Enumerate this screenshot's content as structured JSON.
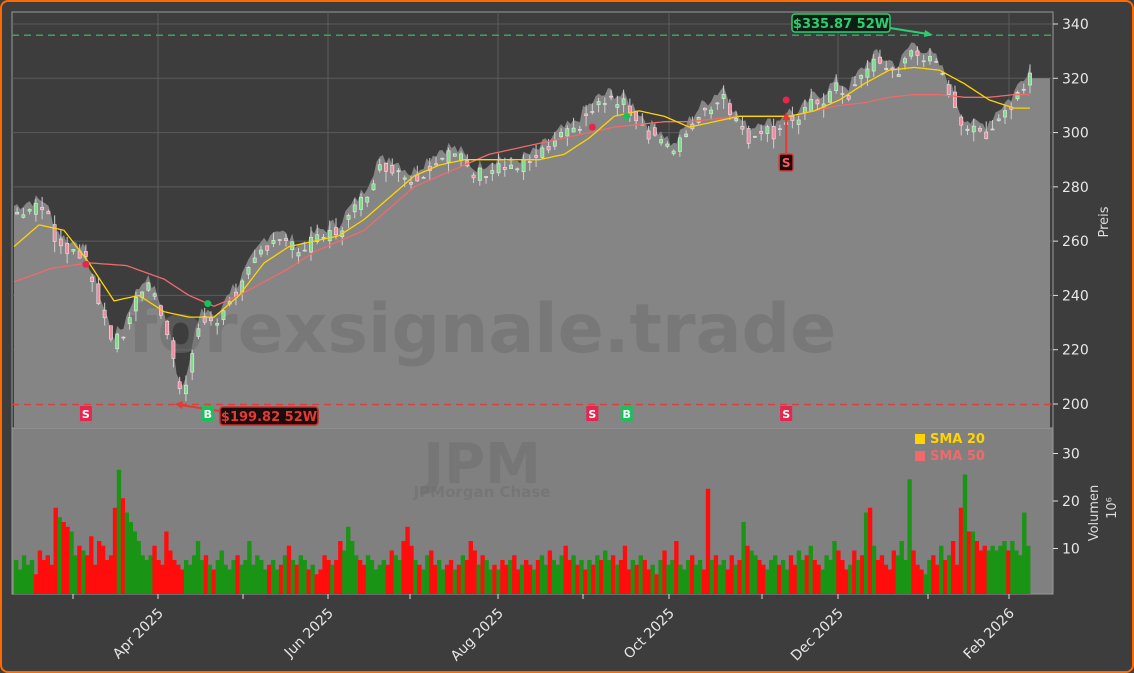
{
  "chart_data": {
    "type": "candlestick",
    "ticker": "JPM",
    "company": "JPMorgan Chase",
    "watermark": "forexsignale.trade",
    "price_axis": {
      "label": "Preis",
      "ticks": [
        200,
        220,
        240,
        260,
        280,
        300,
        320,
        340
      ],
      "range": [
        190,
        345
      ]
    },
    "volume_axis": {
      "label": "Volumen",
      "unit": "10^6",
      "ticks": [
        10,
        20,
        30
      ],
      "range": [
        0,
        35
      ]
    },
    "x_axis": {
      "ticks": [
        "Apr 2025",
        "Jun 2025",
        "Aug 2025",
        "Oct 2025",
        "Dec 2025",
        "Feb 2026"
      ]
    },
    "legend": [
      {
        "label": "SMA 20",
        "color": "#ffd400"
      },
      {
        "label": "SMA 50",
        "color": "#f06a6a"
      }
    ],
    "high_52w": {
      "label": "$335.87 52W",
      "value": 335.87,
      "color": "#2ecc71"
    },
    "low_52w": {
      "label": "$199.82 52W",
      "value": 199.82,
      "color": "#e53935"
    },
    "last_price_area": 320,
    "signals": [
      {
        "type": "S",
        "date_index": 23,
        "price": 251.5
      },
      {
        "type": "B",
        "date_index": 62,
        "price": 237
      },
      {
        "type": "S",
        "date_index": 185,
        "price": 302
      },
      {
        "type": "B",
        "date_index": 196,
        "price": 306
      },
      {
        "type": "S",
        "date_index": 247,
        "price": 312
      }
    ],
    "closes_key": [
      [
        0,
        270
      ],
      [
        6,
        272
      ],
      [
        10,
        272
      ],
      [
        13,
        262
      ],
      [
        18,
        256
      ],
      [
        20,
        258
      ],
      [
        23,
        252
      ],
      [
        26,
        242
      ],
      [
        30,
        228
      ],
      [
        32,
        222
      ],
      [
        35,
        226
      ],
      [
        38,
        236
      ],
      [
        42,
        244
      ],
      [
        44,
        241
      ],
      [
        47,
        234
      ],
      [
        50,
        222
      ],
      [
        52,
        210
      ],
      [
        54,
        204
      ],
      [
        56,
        214
      ],
      [
        58,
        224
      ],
      [
        60,
        230
      ],
      [
        62,
        232
      ],
      [
        65,
        228
      ],
      [
        68,
        238
      ],
      [
        72,
        242
      ],
      [
        76,
        250
      ],
      [
        80,
        258
      ],
      [
        84,
        262
      ],
      [
        88,
        258
      ],
      [
        92,
        256
      ],
      [
        96,
        260
      ],
      [
        100,
        262
      ],
      [
        104,
        264
      ],
      [
        108,
        270
      ],
      [
        112,
        276
      ],
      [
        116,
        286
      ],
      [
        120,
        288
      ],
      [
        123,
        286
      ],
      [
        127,
        282
      ],
      [
        131,
        286
      ],
      [
        135,
        290
      ],
      [
        139,
        292
      ],
      [
        143,
        290
      ],
      [
        147,
        284
      ],
      [
        151,
        286
      ],
      [
        155,
        288
      ],
      [
        159,
        286
      ],
      [
        163,
        288
      ],
      [
        167,
        290
      ],
      [
        171,
        294
      ],
      [
        175,
        298
      ],
      [
        179,
        300
      ],
      [
        183,
        306
      ],
      [
        187,
        310
      ],
      [
        191,
        312
      ],
      [
        195,
        310
      ],
      [
        199,
        306
      ],
      [
        203,
        300
      ],
      [
        207,
        298
      ],
      [
        211,
        292
      ],
      [
        215,
        300
      ],
      [
        219,
        306
      ],
      [
        223,
        310
      ],
      [
        227,
        314
      ],
      [
        231,
        304
      ],
      [
        235,
        298
      ],
      [
        239,
        302
      ],
      [
        243,
        300
      ],
      [
        247,
        305
      ],
      [
        251,
        304
      ],
      [
        255,
        310
      ],
      [
        259,
        312
      ],
      [
        263,
        316
      ],
      [
        267,
        314
      ],
      [
        271,
        320
      ],
      [
        275,
        326
      ],
      [
        279,
        324
      ],
      [
        283,
        322
      ],
      [
        287,
        330
      ],
      [
        291,
        328
      ],
      [
        295,
        324
      ],
      [
        299,
        316
      ],
      [
        303,
        304
      ],
      [
        307,
        300
      ],
      [
        311,
        300
      ],
      [
        315,
        306
      ],
      [
        319,
        310
      ],
      [
        322,
        316
      ],
      [
        325,
        322
      ]
    ],
    "sma20_key": [
      [
        0,
        258
      ],
      [
        8,
        266
      ],
      [
        16,
        264
      ],
      [
        24,
        252
      ],
      [
        32,
        238
      ],
      [
        40,
        240
      ],
      [
        48,
        234
      ],
      [
        56,
        232
      ],
      [
        64,
        232
      ],
      [
        72,
        240
      ],
      [
        80,
        252
      ],
      [
        88,
        258
      ],
      [
        96,
        260
      ],
      [
        104,
        262
      ],
      [
        112,
        268
      ],
      [
        120,
        276
      ],
      [
        128,
        284
      ],
      [
        136,
        288
      ],
      [
        144,
        290
      ],
      [
        152,
        290
      ],
      [
        160,
        290
      ],
      [
        168,
        290
      ],
      [
        176,
        292
      ],
      [
        184,
        298
      ],
      [
        192,
        306
      ],
      [
        200,
        308
      ],
      [
        208,
        306
      ],
      [
        216,
        302
      ],
      [
        224,
        304
      ],
      [
        232,
        306
      ],
      [
        240,
        306
      ],
      [
        248,
        306
      ],
      [
        256,
        308
      ],
      [
        264,
        312
      ],
      [
        272,
        318
      ],
      [
        280,
        323
      ],
      [
        288,
        324
      ],
      [
        296,
        323
      ],
      [
        304,
        318
      ],
      [
        312,
        312
      ],
      [
        320,
        309
      ],
      [
        325,
        309
      ]
    ],
    "sma50_key": [
      [
        0,
        245
      ],
      [
        12,
        250
      ],
      [
        24,
        252
      ],
      [
        36,
        251
      ],
      [
        48,
        246
      ],
      [
        56,
        240
      ],
      [
        64,
        236
      ],
      [
        72,
        240
      ],
      [
        80,
        245
      ],
      [
        88,
        250
      ],
      [
        96,
        256
      ],
      [
        104,
        260
      ],
      [
        112,
        264
      ],
      [
        120,
        272
      ],
      [
        128,
        280
      ],
      [
        136,
        284
      ],
      [
        144,
        288
      ],
      [
        152,
        292
      ],
      [
        160,
        294
      ],
      [
        168,
        296
      ],
      [
        176,
        298
      ],
      [
        184,
        300
      ],
      [
        192,
        302
      ],
      [
        200,
        303
      ],
      [
        208,
        304
      ],
      [
        216,
        304
      ],
      [
        224,
        305
      ],
      [
        232,
        306
      ],
      [
        240,
        306
      ],
      [
        248,
        306
      ],
      [
        256,
        308
      ],
      [
        264,
        310
      ],
      [
        272,
        311
      ],
      [
        280,
        313
      ],
      [
        288,
        314
      ],
      [
        296,
        314
      ],
      [
        304,
        313
      ],
      [
        312,
        313
      ],
      [
        320,
        314
      ],
      [
        325,
        314
      ]
    ],
    "volumes": [
      8,
      6,
      9,
      7,
      8,
      5,
      10,
      8,
      9,
      7,
      19,
      17,
      16,
      15,
      14,
      9,
      11,
      10,
      9,
      13,
      7,
      12,
      11,
      8,
      9,
      19,
      27,
      21,
      18,
      16,
      14,
      12,
      9,
      8,
      9,
      11,
      8,
      7,
      14,
      10,
      8,
      7,
      6,
      8,
      7,
      9,
      12,
      8,
      9,
      7,
      6,
      8,
      10,
      7,
      6,
      8,
      9,
      7,
      8,
      12,
      7,
      9,
      8,
      6,
      7,
      8,
      6,
      7,
      9,
      11,
      8,
      7,
      9,
      8,
      6,
      7,
      5,
      6,
      9,
      8,
      7,
      8,
      12,
      10,
      15,
      12,
      9,
      8,
      7,
      9,
      8,
      6,
      7,
      8,
      7,
      10,
      9,
      8,
      12,
      15,
      11,
      8,
      7,
      6,
      9,
      10,
      7,
      8,
      6,
      7,
      8,
      6,
      7,
      9,
      8,
      12,
      10,
      7,
      9,
      8,
      6,
      7,
      6,
      8,
      7,
      8,
      9,
      6,
      7,
      8,
      7,
      6,
      8,
      9,
      7,
      10,
      8,
      7,
      9,
      11,
      8,
      9,
      7,
      8,
      6,
      8,
      7,
      9,
      8,
      10,
      8,
      9,
      7,
      8,
      11,
      6,
      8,
      7,
      9,
      8,
      6,
      7,
      5,
      8,
      10,
      7,
      8,
      12,
      7,
      6,
      8,
      9,
      7,
      8,
      6,
      23,
      8,
      9,
      7,
      8,
      6,
      9,
      7,
      8,
      16,
      11,
      10,
      9,
      8,
      7,
      6,
      8,
      9,
      7,
      8,
      6,
      9,
      7,
      10,
      8,
      9,
      11,
      8,
      7,
      6,
      9,
      8,
      12,
      10,
      8,
      6,
      7,
      10,
      8,
      9,
      18,
      19,
      11,
      8,
      9,
      7,
      6,
      10,
      9,
      12,
      8,
      25,
      10,
      7,
      6,
      5,
      8,
      9,
      7,
      11,
      8,
      9,
      12,
      7,
      19,
      26,
      14,
      14,
      12,
      10,
      11,
      10,
      11,
      10,
      11,
      12,
      10,
      12,
      10,
      9,
      18,
      11
    ],
    "volume_colors_pattern": "mixed red/green per candle direction"
  }
}
